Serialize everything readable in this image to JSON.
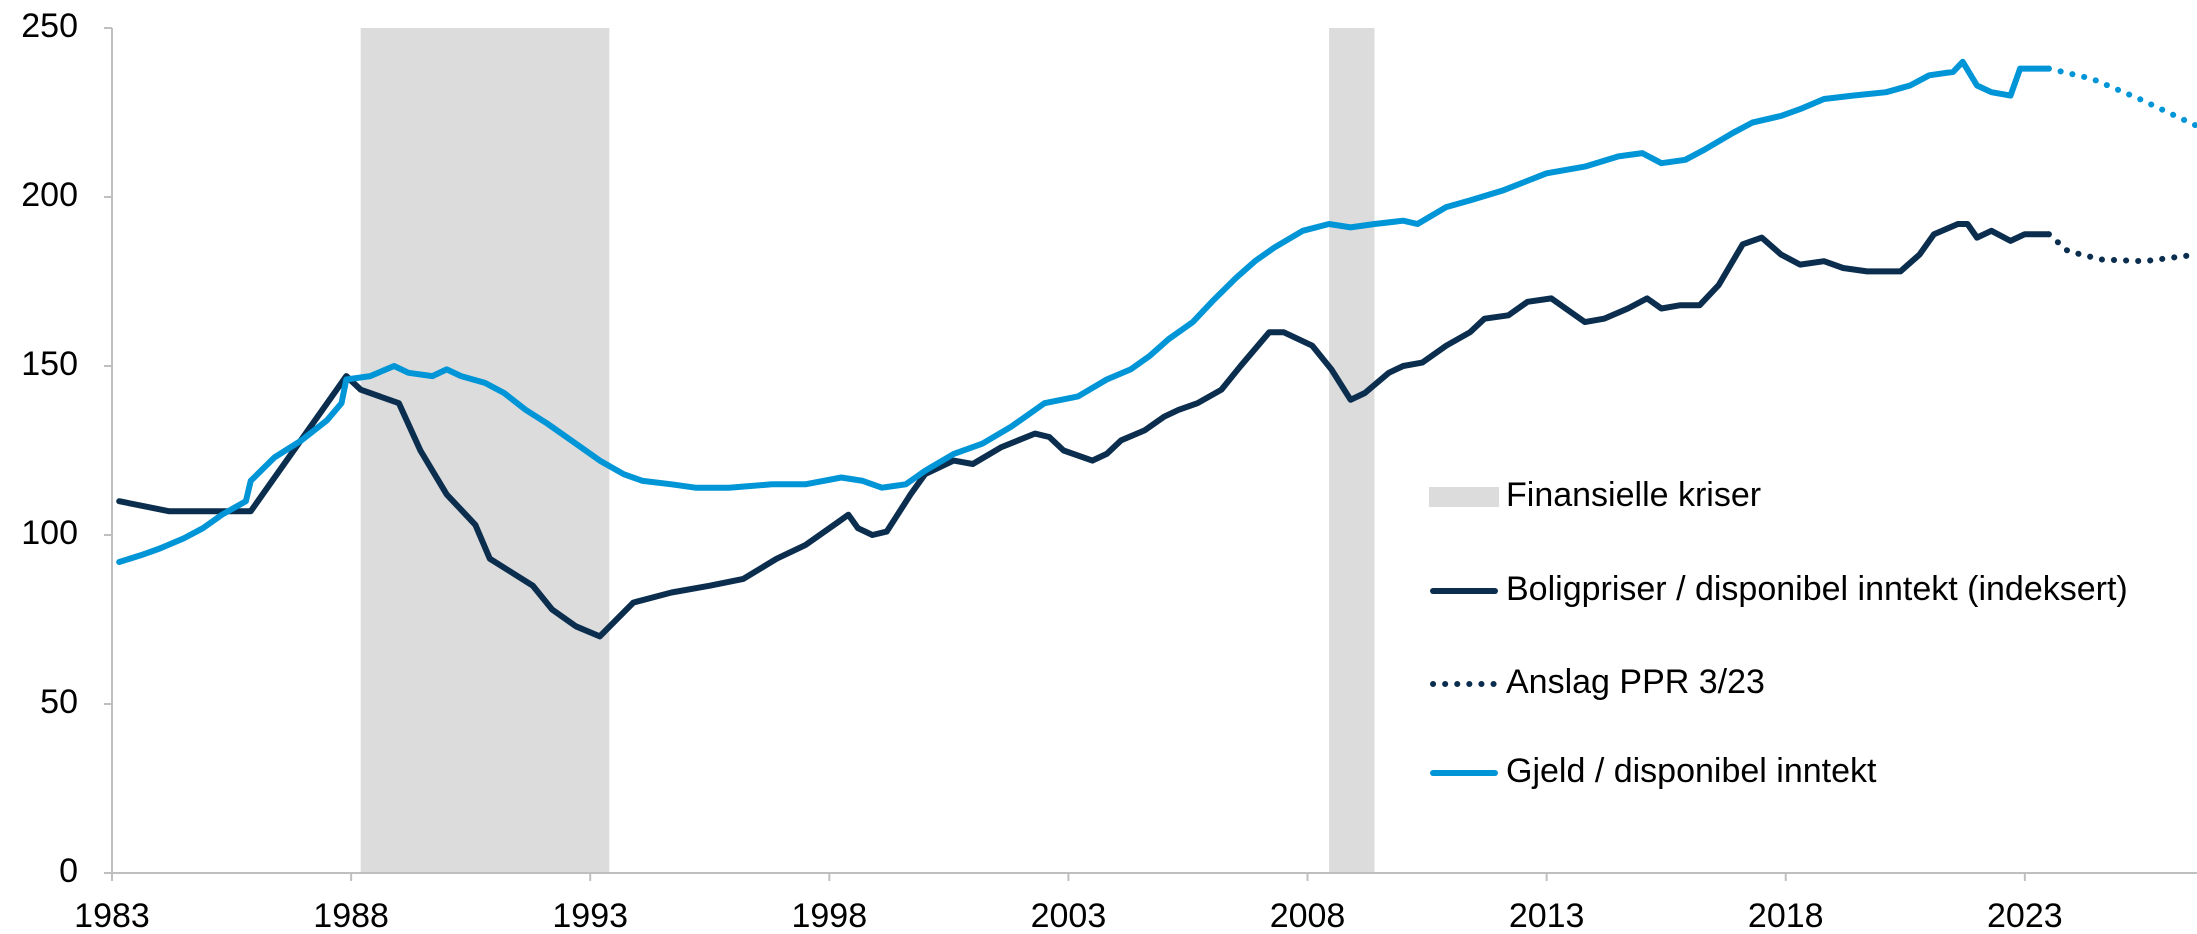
{
  "chart_data": {
    "type": "line",
    "xlim": [
      1983,
      2026.6
    ],
    "xticks": [
      1983,
      1988,
      1993,
      1998,
      2003,
      2008,
      2013,
      2018,
      2023
    ],
    "ylim": [
      0,
      250
    ],
    "yticks": [
      0,
      50,
      100,
      150,
      200,
      250
    ],
    "crises": {
      "name": "Finansielle kriser",
      "color": "#dcdcdc",
      "periods": [
        [
          1988.2,
          1993.4
        ],
        [
          2008.45,
          2009.4
        ]
      ]
    },
    "series": [
      {
        "name": "Boligpriser / disponibel inntekt (indeksert)",
        "color": "#0b2e4f",
        "x": [
          1983.15,
          1984.2,
          1985.9,
          1987.9,
          1988.2,
          1989,
          1989.45,
          1990,
          1990.6,
          1990.9,
          1991.8,
          1992.2,
          1992.7,
          1993.2,
          1993.9,
          1994.7,
          1995.5,
          1996.2,
          1996.9,
          1997.5,
          1998.2,
          1998.4,
          1998.6,
          1998.9,
          1999.2,
          1999.7,
          2000,
          2000.6,
          2001,
          2001.6,
          2002.3,
          2002.6,
          2002.9,
          2003.5,
          2003.8,
          2004.1,
          2004.6,
          2005,
          2005.3,
          2005.7,
          2006.2,
          2006.6,
          2007.2,
          2007.5,
          2008.1,
          2008.5,
          2008.9,
          2009.2,
          2009.7,
          2010,
          2010.4,
          2010.9,
          2011.4,
          2011.7,
          2012.2,
          2012.6,
          2013.1,
          2013.5,
          2013.8,
          2014.2,
          2014.7,
          2015.1,
          2015.4,
          2015.8,
          2016.2,
          2016.6,
          2017.1,
          2017.5,
          2017.9,
          2018.3,
          2018.8,
          2019.2,
          2019.7,
          2020.4,
          2020.8,
          2021.1,
          2021.6,
          2021.8,
          2022,
          2022.3,
          2022.7,
          2023,
          2023.5
        ],
        "values": [
          110,
          107,
          107,
          147,
          143,
          139,
          125,
          112,
          103,
          93,
          85,
          78,
          73,
          70,
          80,
          83,
          85,
          87,
          93,
          97,
          104,
          106,
          102,
          100,
          101,
          112,
          118,
          122,
          121,
          126,
          130,
          129,
          125,
          122,
          124,
          128,
          131,
          135,
          137,
          139,
          143,
          150,
          160,
          160,
          156,
          149,
          140,
          142,
          148,
          150,
          151,
          156,
          160,
          164,
          165,
          169,
          170,
          166,
          163,
          164,
          167,
          170,
          167,
          168,
          168,
          174,
          186,
          188,
          183,
          180,
          181,
          179,
          178,
          178,
          183,
          189,
          192,
          192,
          188,
          190,
          187,
          189,
          189
        ]
      },
      {
        "name": "Gjeld / disponibel inntekt",
        "color": "#0095d6",
        "x": [
          1983.15,
          1983.6,
          1984,
          1984.5,
          1984.9,
          1985.3,
          1985.8,
          1985.9,
          1986.4,
          1986.96,
          1987.5,
          1987.8,
          1987.9,
          1988.4,
          1988.9,
          1989.2,
          1989.7,
          1990,
          1990.3,
          1990.8,
          1991.2,
          1991.65,
          1992.1,
          1992.7,
          1993.2,
          1993.7,
          1994.1,
          1994.7,
          1995.2,
          1995.9,
          1996.8,
          1997.5,
          1998.25,
          1998.7,
          1999.1,
          1999.6,
          2000,
          2000.6,
          2001.2,
          2001.8,
          2002.2,
          2002.5,
          2003.2,
          2003.8,
          2004.3,
          2004.7,
          2005.1,
          2005.6,
          2006,
          2006.5,
          2006.9,
          2007.3,
          2007.9,
          2008.45,
          2008.9,
          2009.4,
          2010,
          2010.3,
          2010.9,
          2011.4,
          2012.1,
          2013,
          2013.8,
          2014.5,
          2015,
          2015.4,
          2015.9,
          2016.3,
          2016.9,
          2017.3,
          2017.9,
          2018.3,
          2018.8,
          2019.4,
          2020.1,
          2020.6,
          2021,
          2021.5,
          2021.7,
          2022,
          2022.3,
          2022.7,
          2022.9,
          2023.5
        ],
        "values": [
          92,
          94,
          96,
          99,
          102,
          106,
          110,
          116,
          123,
          128,
          134,
          139,
          146,
          147,
          150,
          148,
          147,
          149,
          147,
          145,
          142,
          137,
          133,
          127,
          122,
          118,
          116,
          115,
          114,
          114,
          115,
          115,
          117,
          116,
          114,
          115,
          119,
          124,
          127,
          132,
          136,
          139,
          141,
          146,
          149,
          153,
          158,
          163,
          169,
          176,
          181,
          185,
          190,
          192,
          191,
          192,
          193,
          192,
          197,
          199,
          202,
          207,
          209,
          212,
          213,
          210,
          211,
          214,
          219,
          222,
          224,
          226,
          229,
          230,
          231,
          233,
          236,
          237,
          240,
          233,
          231,
          230,
          238,
          238
        ]
      }
    ],
    "forecast": {
      "name": "Anslag PPR 3/23",
      "color": "#0b2e4f",
      "series": [
        {
          "color": "#0b2e4f",
          "x": [
            2023.5,
            2023.9,
            2024.6,
            2025.5,
            2026.6
          ],
          "values": [
            189,
            184,
            181.5,
            181,
            183
          ]
        },
        {
          "color": "#0095d6",
          "x": [
            2023.5,
            2024.4,
            2025.4,
            2026.6
          ],
          "values": [
            238,
            235,
            229,
            221
          ]
        }
      ]
    }
  }
}
